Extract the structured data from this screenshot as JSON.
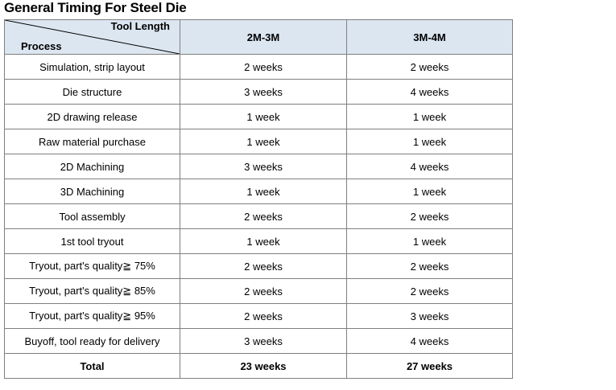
{
  "title": "General Timing For Steel Die",
  "table": {
    "corner_top_label": "Tool Length",
    "corner_bottom_label": "Process",
    "columns": [
      "2M-3M",
      "3M-4M"
    ],
    "rows": [
      {
        "process": "Simulation, strip layout",
        "values": [
          "2 weeks",
          "2 weeks"
        ]
      },
      {
        "process": "Die structure",
        "values": [
          "3 weeks",
          "4 weeks"
        ]
      },
      {
        "process": "2D drawing release",
        "values": [
          "1 week",
          "1 week"
        ]
      },
      {
        "process": "Raw material purchase",
        "values": [
          "1 week",
          "1 week"
        ]
      },
      {
        "process": "2D Machining",
        "values": [
          "3 weeks",
          "4 weeks"
        ]
      },
      {
        "process": "3D Machining",
        "values": [
          "1 week",
          "1 week"
        ]
      },
      {
        "process": "Tool assembly",
        "values": [
          "2 weeks",
          "2 weeks"
        ]
      },
      {
        "process": "1st tool tryout",
        "values": [
          "1 week",
          "1 week"
        ]
      },
      {
        "process": "Tryout, part's quality≧ 75%",
        "values": [
          "2 weeks",
          "2 weeks"
        ]
      },
      {
        "process": "Tryout, part's quality≧ 85%",
        "values": [
          "2 weeks",
          "2 weeks"
        ]
      },
      {
        "process": "Tryout, part's quality≧ 95%",
        "values": [
          "2 weeks",
          "3 weeks"
        ]
      },
      {
        "process": "Buyoff, tool ready for delivery",
        "values": [
          "3 weeks",
          "4 weeks"
        ]
      }
    ],
    "total": {
      "process": "Total",
      "values": [
        "23 weeks",
        "27 weeks"
      ]
    }
  }
}
